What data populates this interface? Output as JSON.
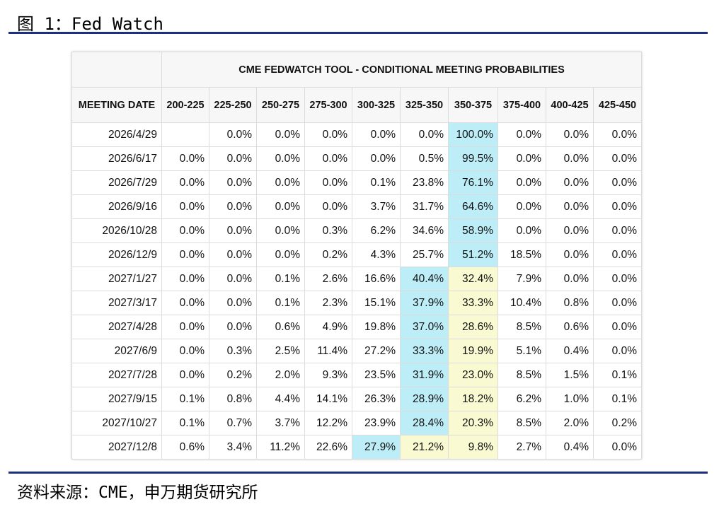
{
  "header": {
    "title": "图 1：Fed Watch"
  },
  "table": {
    "title": "CME FEDWATCH TOOL - CONDITIONAL MEETING PROBABILITIES",
    "date_header": "MEETING DATE",
    "columns": [
      "200-225",
      "225-250",
      "250-275",
      "275-300",
      "300-325",
      "325-350",
      "350-375",
      "375-400",
      "400-425",
      "425-450"
    ],
    "colors": {
      "blue": "#bdeef8",
      "yellow": "#fafad2"
    },
    "rows": [
      {
        "date": "2026/4/29",
        "values": [
          null,
          "0.0%",
          "0.0%",
          "0.0%",
          "0.0%",
          "0.0%",
          "100.0%",
          "0.0%",
          "0.0%",
          "0.0%"
        ],
        "blue_cells": [
          6
        ],
        "yellow_cells": []
      },
      {
        "date": "2026/6/17",
        "values": [
          "0.0%",
          "0.0%",
          "0.0%",
          "0.0%",
          "0.0%",
          "0.5%",
          "99.5%",
          "0.0%",
          "0.0%",
          "0.0%"
        ],
        "blue_cells": [
          6
        ],
        "yellow_cells": []
      },
      {
        "date": "2026/7/29",
        "values": [
          "0.0%",
          "0.0%",
          "0.0%",
          "0.0%",
          "0.1%",
          "23.8%",
          "76.1%",
          "0.0%",
          "0.0%",
          "0.0%"
        ],
        "blue_cells": [
          6
        ],
        "yellow_cells": []
      },
      {
        "date": "2026/9/16",
        "values": [
          "0.0%",
          "0.0%",
          "0.0%",
          "0.0%",
          "3.7%",
          "31.7%",
          "64.6%",
          "0.0%",
          "0.0%",
          "0.0%"
        ],
        "blue_cells": [
          6
        ],
        "yellow_cells": []
      },
      {
        "date": "2026/10/28",
        "values": [
          "0.0%",
          "0.0%",
          "0.0%",
          "0.3%",
          "6.2%",
          "34.6%",
          "58.9%",
          "0.0%",
          "0.0%",
          "0.0%"
        ],
        "blue_cells": [
          6
        ],
        "yellow_cells": []
      },
      {
        "date": "2026/12/9",
        "values": [
          "0.0%",
          "0.0%",
          "0.0%",
          "0.2%",
          "4.3%",
          "25.7%",
          "51.2%",
          "18.5%",
          "0.0%",
          "0.0%"
        ],
        "blue_cells": [
          6
        ],
        "yellow_cells": []
      },
      {
        "date": "2027/1/27",
        "values": [
          "0.0%",
          "0.0%",
          "0.1%",
          "2.6%",
          "16.6%",
          "40.4%",
          "32.4%",
          "7.9%",
          "0.0%",
          "0.0%"
        ],
        "blue_cells": [
          5
        ],
        "yellow_cells": [
          6
        ]
      },
      {
        "date": "2027/3/17",
        "values": [
          "0.0%",
          "0.0%",
          "0.1%",
          "2.3%",
          "15.1%",
          "37.9%",
          "33.3%",
          "10.4%",
          "0.8%",
          "0.0%"
        ],
        "blue_cells": [
          5
        ],
        "yellow_cells": [
          6
        ]
      },
      {
        "date": "2027/4/28",
        "values": [
          "0.0%",
          "0.0%",
          "0.6%",
          "4.9%",
          "19.8%",
          "37.0%",
          "28.6%",
          "8.5%",
          "0.6%",
          "0.0%"
        ],
        "blue_cells": [
          5
        ],
        "yellow_cells": [
          6
        ]
      },
      {
        "date": "2027/6/9",
        "values": [
          "0.0%",
          "0.3%",
          "2.5%",
          "11.4%",
          "27.2%",
          "33.3%",
          "19.9%",
          "5.1%",
          "0.4%",
          "0.0%"
        ],
        "blue_cells": [
          5
        ],
        "yellow_cells": [
          6
        ]
      },
      {
        "date": "2027/7/28",
        "values": [
          "0.0%",
          "0.2%",
          "2.0%",
          "9.3%",
          "23.5%",
          "31.9%",
          "23.0%",
          "8.5%",
          "1.5%",
          "0.1%"
        ],
        "blue_cells": [
          5
        ],
        "yellow_cells": [
          6
        ]
      },
      {
        "date": "2027/9/15",
        "values": [
          "0.1%",
          "0.8%",
          "4.4%",
          "14.1%",
          "26.3%",
          "28.9%",
          "18.2%",
          "6.2%",
          "1.0%",
          "0.1%"
        ],
        "blue_cells": [
          5
        ],
        "yellow_cells": [
          6
        ]
      },
      {
        "date": "2027/10/27",
        "values": [
          "0.1%",
          "0.7%",
          "3.7%",
          "12.2%",
          "23.9%",
          "28.4%",
          "20.3%",
          "8.5%",
          "2.0%",
          "0.2%"
        ],
        "blue_cells": [
          5
        ],
        "yellow_cells": [
          6
        ]
      },
      {
        "date": "2027/12/8",
        "values": [
          "0.6%",
          "3.4%",
          "11.2%",
          "22.6%",
          "27.9%",
          "21.2%",
          "9.8%",
          "2.7%",
          "0.4%",
          "0.0%"
        ],
        "blue_cells": [
          4
        ],
        "yellow_cells": [
          5,
          6
        ]
      }
    ]
  },
  "footer": {
    "source": "资料来源：CME，申万期货研究所"
  }
}
